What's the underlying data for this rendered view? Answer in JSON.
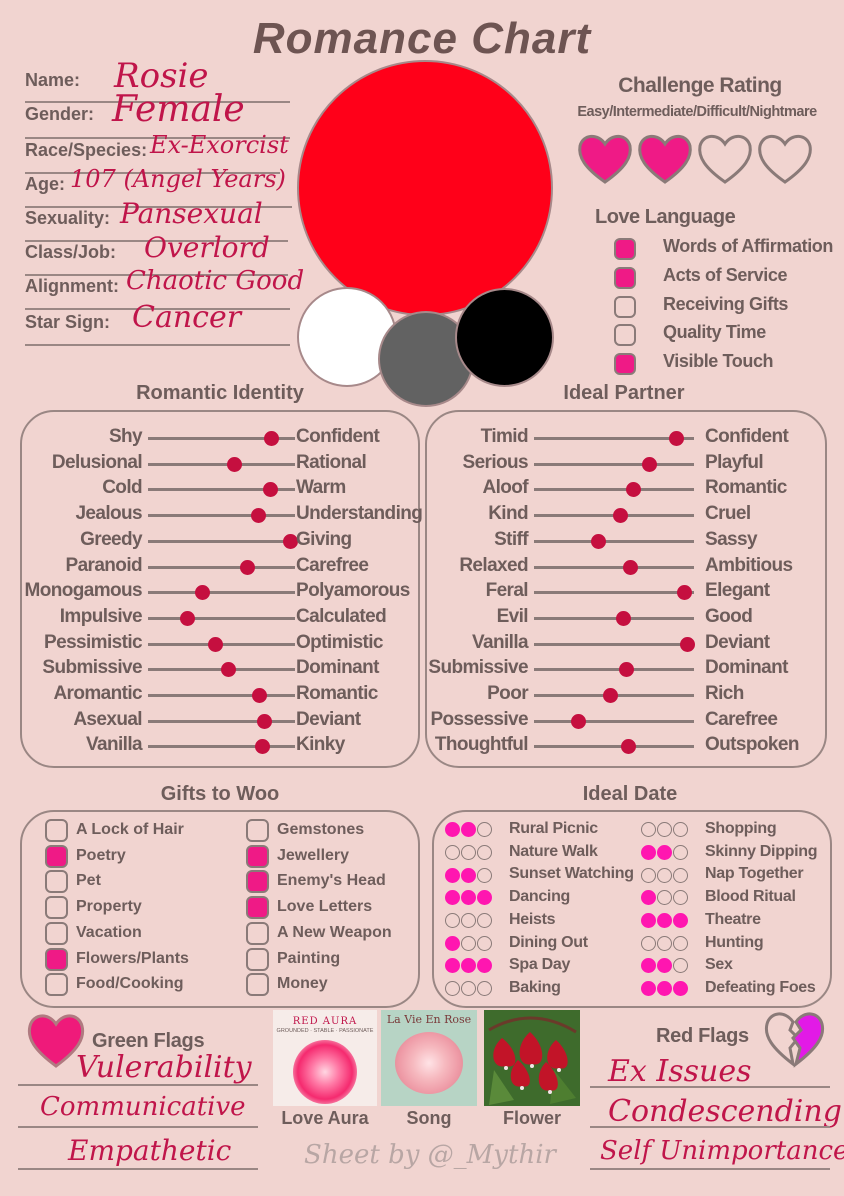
{
  "title": "Romance Chart",
  "profile": [
    {
      "label": "Name:",
      "value": "Rosie"
    },
    {
      "label": "Gender:",
      "value": "Female"
    },
    {
      "label": "Race/Species:",
      "value": "Ex-Exorcist"
    },
    {
      "label": "Age:",
      "value": "107 (Angel Years)"
    },
    {
      "label": "Sexuality:",
      "value": "Pansexual"
    },
    {
      "label": "Class/Job:",
      "value": "Overlord"
    },
    {
      "label": "Alignment:",
      "value": "Chaotic Good"
    },
    {
      "label": "Star Sign:",
      "value": "Cancer"
    }
  ],
  "colors": {
    "main_circle": "#ff0019",
    "swatches": [
      "#ffffff",
      "#626262",
      "#000000"
    ],
    "accent": "#ef1a86",
    "knob": "#c50f3f"
  },
  "challenge": {
    "title": "Challenge Rating",
    "subtitle": "Easy/Intermediate/Difficult/Nightmare",
    "rating": 2,
    "max": 4
  },
  "love_language": {
    "title": "Love Language",
    "items": [
      {
        "label": "Words of Affirmation",
        "checked": true
      },
      {
        "label": "Acts of Service",
        "checked": true
      },
      {
        "label": "Receiving Gifts",
        "checked": false
      },
      {
        "label": "Quality Time",
        "checked": false
      },
      {
        "label": "Visible Touch",
        "checked": true
      }
    ]
  },
  "romantic_identity": {
    "title": "Romantic Identity",
    "sliders": [
      {
        "left": "Shy",
        "right": "Confident",
        "value": 0.84
      },
      {
        "left": "Delusional",
        "right": "Rational",
        "value": 0.59
      },
      {
        "left": "Cold",
        "right": "Warm",
        "value": 0.83
      },
      {
        "left": "Jealous",
        "right": "Understanding",
        "value": 0.75
      },
      {
        "left": "Greedy",
        "right": "Giving",
        "value": 0.97
      },
      {
        "left": "Paranoid",
        "right": "Carefree",
        "value": 0.68
      },
      {
        "left": "Monogamous",
        "right": "Polyamorous",
        "value": 0.37
      },
      {
        "left": "Impulsive",
        "right": "Calculated",
        "value": 0.27
      },
      {
        "left": "Pessimistic",
        "right": "Optimistic",
        "value": 0.46
      },
      {
        "left": "Submissive",
        "right": "Dominant",
        "value": 0.55
      },
      {
        "left": "Aromantic",
        "right": "Romantic",
        "value": 0.76
      },
      {
        "left": "Asexual",
        "right": "Deviant",
        "value": 0.79
      },
      {
        "left": "Vanilla",
        "right": "Kinky",
        "value": 0.78
      }
    ]
  },
  "ideal_partner": {
    "title": "Ideal Partner",
    "sliders": [
      {
        "left": "Timid",
        "right": "Confident",
        "value": 0.89
      },
      {
        "left": "Serious",
        "right": "Playful",
        "value": 0.72
      },
      {
        "left": "Aloof",
        "right": "Romantic",
        "value": 0.62
      },
      {
        "left": "Kind",
        "right": "Cruel",
        "value": 0.54
      },
      {
        "left": "Stiff",
        "right": "Sassy",
        "value": 0.4
      },
      {
        "left": "Relaxed",
        "right": "Ambitious",
        "value": 0.6
      },
      {
        "left": "Feral",
        "right": "Elegant",
        "value": 0.94
      },
      {
        "left": "Evil",
        "right": "Good",
        "value": 0.56
      },
      {
        "left": "Vanilla",
        "right": "Deviant",
        "value": 0.96
      },
      {
        "left": "Submissive",
        "right": "Dominant",
        "value": 0.58
      },
      {
        "left": "Poor",
        "right": "Rich",
        "value": 0.48
      },
      {
        "left": "Possessive",
        "right": "Carefree",
        "value": 0.28
      },
      {
        "left": "Thoughtful",
        "right": "Outspoken",
        "value": 0.59
      }
    ]
  },
  "gifts": {
    "title": "Gifts to Woo",
    "left": [
      {
        "label": "A Lock of Hair",
        "checked": false
      },
      {
        "label": "Poetry",
        "checked": true
      },
      {
        "label": "Pet",
        "checked": false
      },
      {
        "label": "Property",
        "checked": false
      },
      {
        "label": "Vacation",
        "checked": false
      },
      {
        "label": "Flowers/Plants",
        "checked": true
      },
      {
        "label": "Food/Cooking",
        "checked": false
      }
    ],
    "right": [
      {
        "label": "Gemstones",
        "checked": false
      },
      {
        "label": "Jewellery",
        "checked": true
      },
      {
        "label": "Enemy's Head",
        "checked": true
      },
      {
        "label": "Love Letters",
        "checked": true
      },
      {
        "label": "A New Weapon",
        "checked": false
      },
      {
        "label": "Painting",
        "checked": false
      },
      {
        "label": "Money",
        "checked": false
      }
    ]
  },
  "ideal_date": {
    "title": "Ideal Date",
    "left": [
      {
        "label": "Rural Picnic",
        "rating": 2
      },
      {
        "label": "Nature Walk",
        "rating": 0
      },
      {
        "label": "Sunset Watching",
        "rating": 2
      },
      {
        "label": "Dancing",
        "rating": 3
      },
      {
        "label": "Heists",
        "rating": 0
      },
      {
        "label": "Dining Out",
        "rating": 1
      },
      {
        "label": "Spa Day",
        "rating": 3
      },
      {
        "label": "Baking",
        "rating": 0
      }
    ],
    "right": [
      {
        "label": "Shopping",
        "rating": 0
      },
      {
        "label": "Skinny Dipping",
        "rating": 2
      },
      {
        "label": "Nap Together",
        "rating": 0
      },
      {
        "label": "Blood Ritual",
        "rating": 1
      },
      {
        "label": "Theatre",
        "rating": 3
      },
      {
        "label": "Hunting",
        "rating": 0
      },
      {
        "label": "Sex",
        "rating": 2
      },
      {
        "label": "Defeating Foes",
        "rating": 3
      }
    ]
  },
  "green_flags": {
    "title": "Green Flags",
    "items": [
      "Vulerability",
      "Communicative",
      "Empathetic"
    ]
  },
  "red_flags": {
    "title": "Red Flags",
    "items": [
      "Ex Issues",
      "Condescending",
      "Self Unimportance"
    ]
  },
  "media": {
    "aura_caption": "Love Aura",
    "aura_title": "RED AURA",
    "aura_sub": "GROUNDED · STABLE · PASSIONATE",
    "song_caption": "Song",
    "song_title": "La Vie En Rose",
    "flower_caption": "Flower"
  },
  "credit": "Sheet by @_Mythir"
}
